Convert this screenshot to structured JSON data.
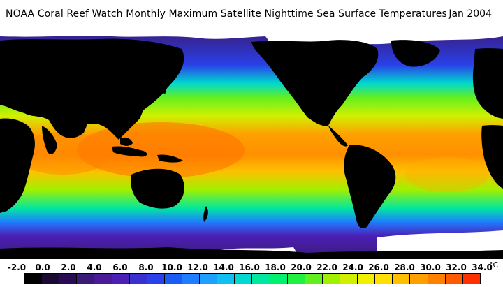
{
  "header": {
    "title": "NOAA Coral Reef Watch Monthly Maximum Satellite Nighttime Sea Surface Temperatures",
    "date": "Jan 2004"
  },
  "legend": {
    "unit": "°C",
    "ticks": [
      "-2.0",
      "0.0",
      "2.0",
      "4.0",
      "6.0",
      "8.0",
      "10.0",
      "12.0",
      "14.0",
      "16.0",
      "18.0",
      "20.0",
      "22.0",
      "24.0",
      "26.0",
      "28.0",
      "30.0",
      "32.0",
      "34.0"
    ],
    "colors": [
      "#000000",
      "#1a0a33",
      "#2a0a55",
      "#3a1a77",
      "#4a1a99",
      "#4c1fb5",
      "#3a2fd0",
      "#2a40e8",
      "#1a5cf5",
      "#1f7dff",
      "#1fa0ff",
      "#10c0f0",
      "#00d8d0",
      "#00e8a0",
      "#00f070",
      "#20f040",
      "#60f020",
      "#a0f000",
      "#d0f000",
      "#f0f000",
      "#ffe000",
      "#ffc000",
      "#ffa000",
      "#ff8000",
      "#ff5a00",
      "#ff3000"
    ]
  },
  "map": {
    "palette": {
      "land": "#000000",
      "ice": "#ffffff",
      "polar": "#4a1a99",
      "cold": "#2a40e8",
      "cool": "#00e8a0",
      "mild": "#60f020",
      "warm": "#d0f000",
      "hot": "#ffa000",
      "hottest": "#ff7000"
    }
  }
}
